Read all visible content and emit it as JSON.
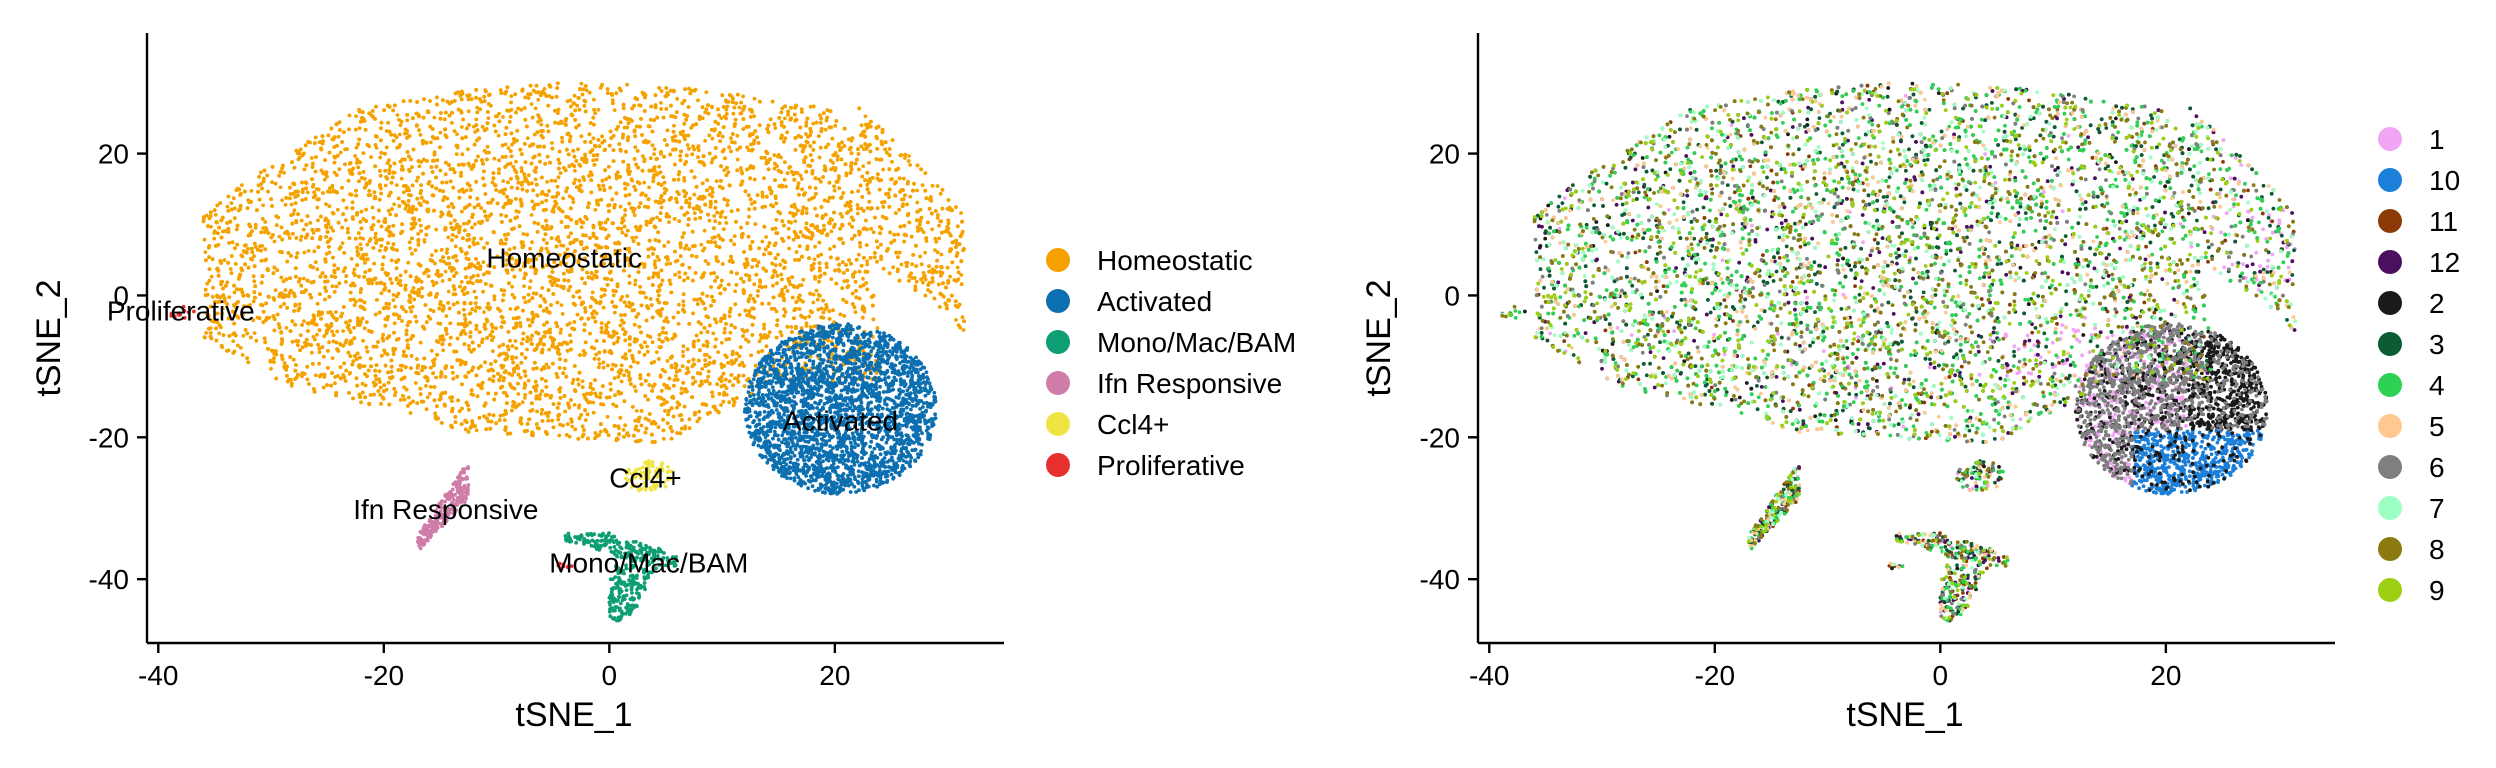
{
  "chart_data": [
    {
      "type": "scatter",
      "panel": "left",
      "xlabel": "tSNE_1",
      "ylabel": "tSNE_2",
      "xlim": [
        -41,
        35
      ],
      "ylim": [
        -49,
        37
      ],
      "xticks": [
        -40,
        -20,
        0,
        20
      ],
      "yticks": [
        20,
        0,
        -20,
        -40
      ],
      "xtick_labels": [
        "-40",
        "-20",
        "0",
        "20"
      ],
      "ytick_labels": [
        "20",
        "0",
        "-20",
        "-40"
      ],
      "grid": false,
      "legend_position": "right",
      "series": [
        {
          "name": "Homeostatic",
          "color": "#F5A200"
        },
        {
          "name": "Activated",
          "color": "#0B6FB0"
        },
        {
          "name": "Mono/Mac/BAM",
          "color": "#0E9E74"
        },
        {
          "name": "Ifn Responsive",
          "color": "#CF7DA8"
        },
        {
          "name": "Ccl4+",
          "color": "#F0E445"
        },
        {
          "name": "Proliferative",
          "color": "#E63030"
        }
      ],
      "cluster_labels": [
        {
          "text": "Homeostatic",
          "x": -4,
          "y": 5
        },
        {
          "text": "Activated",
          "x": 20.5,
          "y": -18
        },
        {
          "text": "Ccl4+",
          "x": 3.2,
          "y": -26
        },
        {
          "text": "Ifn Responsive",
          "x": -14.5,
          "y": -30.5
        },
        {
          "text": "Mono/Mac/BAM",
          "x": 3.5,
          "y": -38
        },
        {
          "text": "Proliferative",
          "x": -38,
          "y": -2.5
        }
      ]
    },
    {
      "type": "scatter",
      "panel": "right",
      "xlabel": "tSNE_1",
      "ylabel": "tSNE_2",
      "xlim": [
        -41,
        35
      ],
      "ylim": [
        -49,
        37
      ],
      "xticks": [
        -40,
        -20,
        0,
        20
      ],
      "yticks": [
        20,
        0,
        -20,
        -40
      ],
      "xtick_labels": [
        "-40",
        "-20",
        "0",
        "20"
      ],
      "ytick_labels": [
        "20",
        "0",
        "-20",
        "-40"
      ],
      "grid": false,
      "legend_position": "right",
      "series": [
        {
          "name": "1",
          "color": "#F2A4F5"
        },
        {
          "name": "10",
          "color": "#1C7FD9"
        },
        {
          "name": "11",
          "color": "#8C3B06"
        },
        {
          "name": "12",
          "color": "#4A0F5E"
        },
        {
          "name": "2",
          "color": "#1A1A1A"
        },
        {
          "name": "3",
          "color": "#0B5C33"
        },
        {
          "name": "4",
          "color": "#2FD154"
        },
        {
          "name": "5",
          "color": "#FFC891"
        },
        {
          "name": "6",
          "color": "#7F7F7F"
        },
        {
          "name": "7",
          "color": "#9EFFC4"
        },
        {
          "name": "8",
          "color": "#8A7A0F"
        },
        {
          "name": "9",
          "color": "#9CCF12"
        }
      ]
    }
  ]
}
